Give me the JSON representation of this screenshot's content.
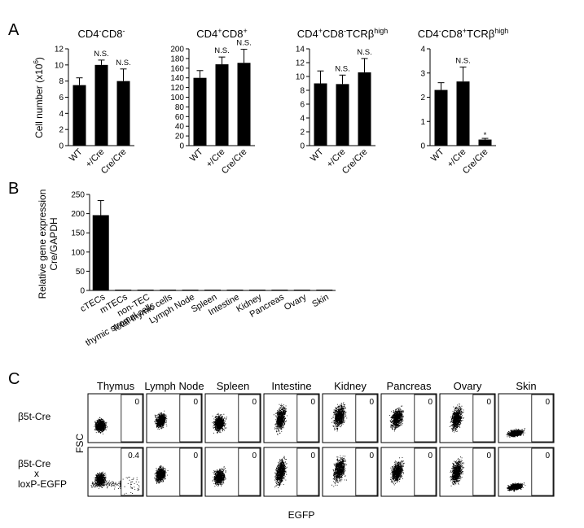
{
  "panel_labels": {
    "a": "A",
    "b": "B",
    "c": "C"
  },
  "panel_a": {
    "ylabel": "Cell number (x10",
    "ylabel_exp": "6",
    "ylabel_close": ")"
  },
  "panel_b": {
    "ylabel_line1": "Relative gene expression",
    "ylabel_line2": "Cre/GAPDH"
  },
  "panel_c": {
    "tissues": [
      "Thymus",
      "Lymph Node",
      "Spleen",
      "Intestine",
      "Kidney",
      "Pancreas",
      "Ovary",
      "Skin"
    ],
    "row1_label": "β5t-Cre",
    "row2_label_line1": "β5t-Cre",
    "row2_label_line2": "x",
    "row2_label_line3": "loxP-EGFP",
    "ylabel": "FSC",
    "xlabel": "EGFP",
    "gate_values_row1": [
      "0",
      "0",
      "0",
      "0",
      "0",
      "0",
      "0",
      "0"
    ],
    "gate_values_row2": [
      "0.4",
      "0",
      "0",
      "0",
      "0",
      "0",
      "0",
      "0"
    ]
  },
  "chart_data": [
    {
      "type": "bar",
      "title_parts": [
        [
          "CD4",
          ""
        ],
        [
          "-",
          "sup"
        ],
        [
          "CD8",
          ""
        ],
        [
          "-",
          "sup"
        ]
      ],
      "categories": [
        "WT",
        "+/Cre",
        "Cre/Cre"
      ],
      "values": [
        7.5,
        10.0,
        8.0
      ],
      "errors": [
        0.9,
        0.6,
        1.5
      ],
      "annotations": [
        "",
        "N.S.",
        "N.S."
      ],
      "ylim": [
        0,
        12
      ],
      "yticks": [
        0,
        2,
        4,
        6,
        8,
        10,
        12
      ]
    },
    {
      "type": "bar",
      "title_parts": [
        [
          "CD4",
          ""
        ],
        [
          "+",
          "sup"
        ],
        [
          "CD8",
          ""
        ],
        [
          "+",
          "sup"
        ]
      ],
      "categories": [
        "WT",
        "+/Cre",
        "Cre/Cre"
      ],
      "values": [
        140,
        168,
        171
      ],
      "errors": [
        15,
        15,
        28
      ],
      "annotations": [
        "",
        "N.S.",
        "N.S."
      ],
      "ylim": [
        0,
        200
      ],
      "yticks": [
        0,
        20,
        40,
        60,
        80,
        100,
        120,
        140,
        160,
        180,
        200
      ]
    },
    {
      "type": "bar",
      "title_parts": [
        [
          "CD4",
          ""
        ],
        [
          "+",
          "sup"
        ],
        [
          "CD8",
          ""
        ],
        [
          "-",
          "sup"
        ],
        [
          "TCRβ",
          ""
        ],
        [
          "high",
          "sup"
        ]
      ],
      "categories": [
        "WT",
        "+/Cre",
        "Cre/Cre"
      ],
      "values": [
        9.0,
        8.9,
        10.6
      ],
      "errors": [
        1.8,
        1.3,
        2.0
      ],
      "annotations": [
        "",
        "N.S.",
        "N.S."
      ],
      "ylim": [
        0,
        14
      ],
      "yticks": [
        0,
        2,
        4,
        6,
        8,
        10,
        12,
        14
      ]
    },
    {
      "type": "bar",
      "title_parts": [
        [
          "CD4",
          ""
        ],
        [
          "-",
          "sup"
        ],
        [
          "CD8",
          ""
        ],
        [
          "+",
          "sup"
        ],
        [
          "TCRβ",
          ""
        ],
        [
          "high",
          "sup"
        ]
      ],
      "categories": [
        "WT",
        "+/Cre",
        "Cre/Cre"
      ],
      "values": [
        2.3,
        2.65,
        0.25
      ],
      "errors": [
        0.3,
        0.6,
        0.05
      ],
      "annotations": [
        "",
        "N.S.",
        "*"
      ],
      "ylim": [
        0,
        4
      ],
      "yticks": [
        0,
        1,
        2,
        3,
        4
      ]
    },
    {
      "type": "bar",
      "categories": [
        "cTECs",
        "mTECs",
        "non-TEC thymic stromal cells",
        "Total thymic cells",
        "Lymph Node",
        "Spleen",
        "Intestine",
        "Kidney",
        "Pancreas",
        "Ovary",
        "Skin"
      ],
      "category_lines": [
        [
          "cTECs"
        ],
        [
          "mTECs"
        ],
        [
          "non-TEC",
          "thymic stromal cells"
        ],
        [
          "Total thymic cells"
        ],
        [
          "Lymph Node"
        ],
        [
          "Spleen"
        ],
        [
          "Intestine"
        ],
        [
          "Kidney"
        ],
        [
          "Pancreas"
        ],
        [
          "Ovary"
        ],
        [
          "Skin"
        ]
      ],
      "values": [
        196,
        2,
        0.5,
        1,
        1.5,
        0.3,
        0.3,
        0.3,
        0.3,
        1,
        0.3
      ],
      "errors": [
        38,
        0,
        0,
        0,
        0,
        0,
        0,
        0,
        0,
        0,
        0
      ],
      "ylim": [
        0,
        250
      ],
      "yticks": [
        0,
        50,
        100,
        150,
        200,
        250
      ]
    }
  ]
}
